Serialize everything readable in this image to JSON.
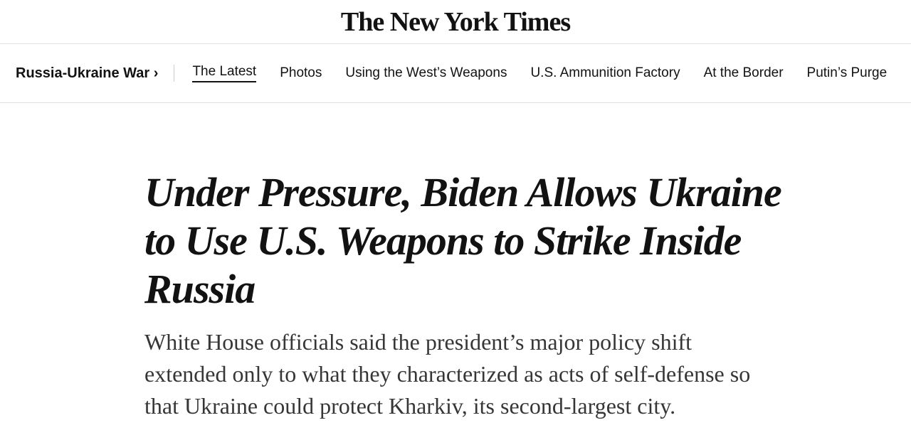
{
  "header": {
    "logo": "The New York Times"
  },
  "nav": {
    "section": "Russia-Ukraine War ›",
    "links": [
      "The Latest",
      "Photos",
      "Using the West’s Weapons",
      "U.S. Ammunition Factory",
      "At the Border",
      "Putin’s Purge"
    ]
  },
  "article": {
    "headline": "Under Pressure, Biden Allows Ukraine to Use U.S. Weapons to Strike Inside Russia",
    "summary": "White House officials said the president’s major policy shift extended only to what they characterized as acts of self-defense so that Ukraine could protect Kharkiv, its second-largest city."
  }
}
